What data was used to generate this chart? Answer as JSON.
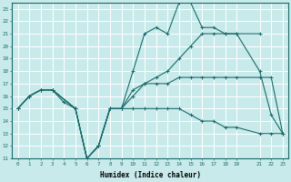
{
  "xlabel": "Humidex (Indice chaleur)",
  "bg_color": "#c8eaea",
  "grid_color": "#ffffff",
  "line_color": "#1a6b6b",
  "x_ticks": [
    0,
    1,
    2,
    3,
    4,
    5,
    6,
    7,
    8,
    9,
    10,
    11,
    12,
    13,
    14,
    15,
    16,
    17,
    18,
    19,
    21,
    22,
    23
  ],
  "ylim": [
    11,
    23.5
  ],
  "xlim": [
    -0.5,
    23.5
  ],
  "yticks": [
    11,
    12,
    13,
    14,
    15,
    16,
    17,
    18,
    19,
    20,
    21,
    22,
    23
  ],
  "series": [
    {
      "x": [
        0,
        1,
        2,
        3,
        4,
        5,
        6,
        7,
        8,
        9,
        10,
        11,
        12,
        13,
        14,
        15,
        16,
        17,
        18,
        19,
        21,
        22,
        23
      ],
      "y": [
        15,
        16,
        16.5,
        16.5,
        15.5,
        15,
        11,
        12,
        15,
        15,
        15,
        15,
        15,
        15,
        15,
        14.5,
        14,
        14,
        13.5,
        13.5,
        13,
        13,
        13
      ]
    },
    {
      "x": [
        0,
        1,
        2,
        3,
        5,
        6,
        7,
        8,
        9,
        10,
        11,
        12,
        13,
        14,
        15,
        16,
        17,
        18,
        19,
        21,
        22,
        23
      ],
      "y": [
        15,
        16,
        16.5,
        16.5,
        15,
        11,
        12,
        15,
        15,
        18,
        21,
        21.5,
        21,
        23.5,
        23.5,
        21.5,
        21.5,
        21,
        21,
        18,
        14.5,
        13
      ]
    },
    {
      "x": [
        0,
        1,
        2,
        3,
        5,
        6,
        7,
        8,
        9,
        10,
        11,
        12,
        13,
        14,
        15,
        16,
        17,
        18,
        19,
        21
      ],
      "y": [
        15,
        16,
        16.5,
        16.5,
        15,
        11,
        12,
        15,
        15,
        16,
        17,
        17.5,
        18,
        19,
        20,
        21,
        21,
        21,
        21,
        21
      ]
    },
    {
      "x": [
        0,
        1,
        2,
        3,
        5,
        6,
        7,
        8,
        9,
        10,
        11,
        12,
        13,
        14,
        15,
        16,
        17,
        18,
        19,
        21,
        22,
        23
      ],
      "y": [
        15,
        16,
        16.5,
        16.5,
        15,
        11,
        12,
        15,
        15,
        16.5,
        17,
        17,
        17,
        17.5,
        17.5,
        17.5,
        17.5,
        17.5,
        17.5,
        17.5,
        17.5,
        13
      ]
    }
  ]
}
